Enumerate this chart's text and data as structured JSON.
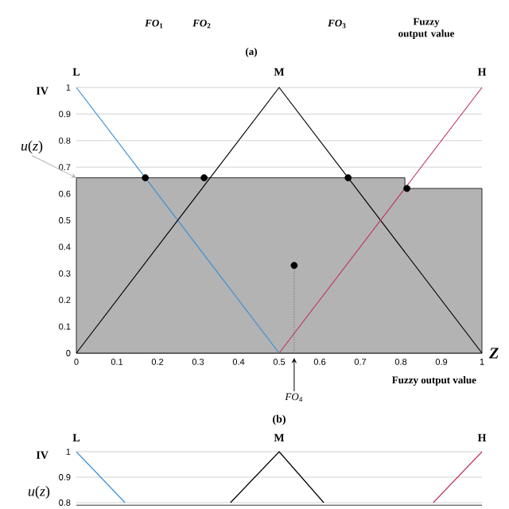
{
  "chart_data": [
    {
      "type": "other",
      "annotations": [
        "*FO*$_{1}$",
        "*FO*$_{2}$",
        "*FO*$_{3}$",
        "Fuzzy output value",
        "(a)"
      ]
    },
    {
      "type": "line",
      "xlabel": "Fuzzy output value",
      "ylabel": "IV",
      "xlim": [
        0,
        1
      ],
      "ylim": [
        0,
        1
      ],
      "xticks": [
        0,
        0.1,
        0.2,
        0.3,
        0.4,
        0.5,
        0.6,
        0.7,
        0.8,
        0.9,
        1
      ],
      "yticks": [
        0,
        0.1,
        0.2,
        0.3,
        0.4,
        0.5,
        0.6,
        0.7,
        0.8,
        0.9,
        1
      ],
      "grid": "y",
      "series": [
        {
          "type": "area",
          "color": "#b3b3b3",
          "x": [
            0,
            0.81,
            0.81,
            1
          ],
          "values": [
            0.66,
            0.66,
            0.62,
            0.62
          ]
        },
        {
          "name": "L",
          "color": "#3a8fd6",
          "x": [
            0,
            0.5
          ],
          "values": [
            1,
            0
          ]
        },
        {
          "name": "M",
          "color": "#000000",
          "x": [
            0,
            0.5,
            1
          ],
          "values": [
            0,
            1,
            0
          ]
        },
        {
          "name": "H",
          "color": "#c0395a",
          "x": [
            0.5,
            1
          ],
          "values": [
            0,
            1
          ]
        },
        {
          "type": "scatter",
          "marker": "circle",
          "color": "#000000",
          "x": [
            0.17,
            0.315,
            0.67,
            0.815,
            0.537
          ],
          "values": [
            0.66,
            0.66,
            0.66,
            0.62,
            0.33
          ]
        },
        {
          "type": "line",
          "line_style": "dotted",
          "color": "#777777",
          "x": [
            0.537,
            0.537
          ],
          "values": [
            0,
            0.33
          ]
        }
      ],
      "annotations": [
        {
          "text": "*u*(*z*)",
          "x": 0,
          "y": 0.66
        },
        {
          "text": "*FO*$_{4}$",
          "x": 0.537,
          "y": 0
        },
        "*Z*",
        "(b)"
      ]
    },
    {
      "type": "line",
      "ylabel": "IV",
      "xlim": [
        0,
        1
      ],
      "ylim": [
        0.79,
        1
      ],
      "yticks": [
        0.8,
        0.9,
        1
      ],
      "grid": "y",
      "tick_labels": "y",
      "series": [
        {
          "name": "L",
          "color": "#3a8fd6",
          "x": [
            0,
            0.12
          ],
          "values": [
            1,
            0.8
          ]
        },
        {
          "name": "M",
          "color": "#000000",
          "x": [
            0.38,
            0.5,
            0.61
          ],
          "values": [
            0.8,
            1,
            0.8
          ]
        },
        {
          "name": "H",
          "color": "#c0395a",
          "x": [
            0.88,
            1
          ],
          "values": [
            0.8,
            1
          ]
        }
      ],
      "annotations": [
        "*u*(*z*)"
      ]
    }
  ]
}
